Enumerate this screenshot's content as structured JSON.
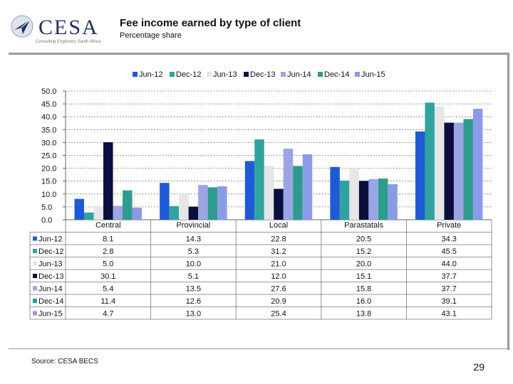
{
  "header": {
    "logo_text": "CESA",
    "logo_subtext": "Consulting Engineers South Africa"
  },
  "source": "Source: CESA BECS",
  "page_number": "29",
  "chart_data": {
    "type": "bar",
    "title": "Fee income earned by type of client",
    "subtitle": "Percentage share",
    "categories": [
      "Central",
      "Provincial",
      "Local",
      "Parastatals",
      "Private"
    ],
    "ylim": [
      0,
      50
    ],
    "yticks": [
      "0.0",
      "5.0",
      "10.0",
      "15.0",
      "20.0",
      "25.0",
      "30.0",
      "35.0",
      "40.0",
      "45.0",
      "50.0"
    ],
    "legend_position": "top",
    "grid": true,
    "series": [
      {
        "name": "Jun-12",
        "color": "#1f5ad4",
        "values": [
          8.1,
          14.3,
          22.8,
          20.5,
          34.3
        ],
        "labels": [
          "8.1",
          "14.3",
          "22.8",
          "20.5",
          "34.3"
        ]
      },
      {
        "name": "Dec-12",
        "color": "#2fa3a0",
        "values": [
          2.8,
          5.3,
          31.2,
          15.2,
          45.5
        ],
        "labels": [
          "2.8",
          "5.3",
          "31.2",
          "15.2",
          "45.5"
        ]
      },
      {
        "name": "Jun-13",
        "color": "#e6e6e6",
        "values": [
          5.0,
          10.0,
          21.0,
          20.0,
          44.0
        ],
        "labels": [
          "5.0",
          "10.0",
          "21.0",
          "20.0",
          "44.0"
        ]
      },
      {
        "name": "Dec-13",
        "color": "#0b0e3d",
        "values": [
          30.1,
          5.1,
          12.0,
          15.1,
          37.7
        ],
        "labels": [
          "30.1",
          "5.1",
          "12.0",
          "15.1",
          "37.7"
        ]
      },
      {
        "name": "Jun-14",
        "color": "#9aa5e3",
        "values": [
          5.4,
          13.5,
          27.6,
          15.8,
          37.7
        ],
        "labels": [
          "5.4",
          "13.5",
          "27.6",
          "15.8",
          "37.7"
        ]
      },
      {
        "name": "Dec-14",
        "color": "#2e9c8c",
        "values": [
          11.4,
          12.6,
          20.9,
          16.0,
          39.1
        ],
        "labels": [
          "11.4",
          "12.6",
          "20.9",
          "16.0",
          "39.1"
        ]
      },
      {
        "name": "Jun-15",
        "color": "#8c9be8",
        "values": [
          4.7,
          13.0,
          25.4,
          13.8,
          43.1
        ],
        "labels": [
          "4.7",
          "13.0",
          "25.4",
          "13.8",
          "43.1"
        ]
      }
    ]
  }
}
